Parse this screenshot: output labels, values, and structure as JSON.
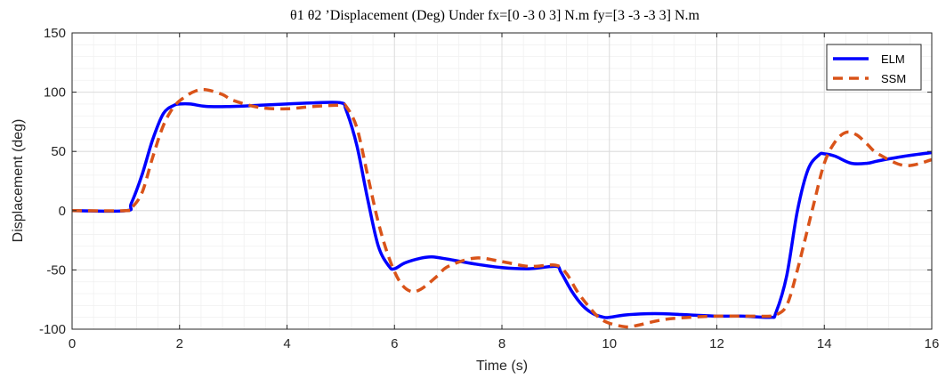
{
  "chart_data": {
    "type": "line",
    "title": "θ1 θ2 ’Displacement (Deg) Under fx=[0 -3 0 3] N.m fy=[3 -3 -3 3] N.m",
    "xlabel": "Time (s)",
    "ylabel": "Displacement (deg)",
    "xlim": [
      0,
      16
    ],
    "ylim": [
      -100,
      150
    ],
    "xticks": [
      "0",
      "2",
      "4",
      "6",
      "8",
      "10",
      "12",
      "14",
      "16"
    ],
    "yticks": [
      "-100",
      "-50",
      "0",
      "50",
      "100",
      "150"
    ],
    "grid": true,
    "legend_position": "top-right",
    "series": [
      {
        "name": "ELM",
        "color": "#0000ff",
        "style": "solid",
        "x": [
          0,
          1,
          1.1,
          1.3,
          1.5,
          1.7,
          1.9,
          2.0,
          2.2,
          2.5,
          3.0,
          3.5,
          4.0,
          4.5,
          5.0,
          5.1,
          5.3,
          5.5,
          5.7,
          5.9,
          6.0,
          6.2,
          6.5,
          6.7,
          7.0,
          7.5,
          8.0,
          8.5,
          9.0,
          9.1,
          9.3,
          9.5,
          9.7,
          9.9,
          10.0,
          10.3,
          10.7,
          11.0,
          11.5,
          12.0,
          12.5,
          13.0,
          13.1,
          13.3,
          13.5,
          13.7,
          13.9,
          14.0,
          14.2,
          14.5,
          14.8,
          15.0,
          15.5,
          16.0
        ],
        "y": [
          0,
          0,
          6,
          30,
          60,
          82,
          89,
          90,
          90,
          88,
          88,
          89,
          90,
          91,
          91,
          85,
          55,
          10,
          -30,
          -47,
          -49,
          -44,
          -40,
          -39,
          -41,
          -45,
          -48,
          -49,
          -47,
          -52,
          -68,
          -80,
          -87,
          -90,
          -90,
          -88,
          -87,
          -87,
          -88,
          -89,
          -89,
          -90,
          -86,
          -55,
          0,
          35,
          47,
          48,
          46,
          40,
          40,
          42,
          46,
          49
        ]
      },
      {
        "name": "SSM",
        "color": "#d95319",
        "style": "dashed",
        "x": [
          0,
          1,
          1.1,
          1.3,
          1.5,
          1.7,
          1.9,
          2.1,
          2.3,
          2.5,
          2.8,
          3.0,
          3.5,
          4.0,
          4.5,
          5.0,
          5.1,
          5.3,
          5.5,
          5.7,
          5.9,
          6.1,
          6.3,
          6.5,
          6.8,
          7.0,
          7.5,
          8.0,
          8.5,
          9.0,
          9.2,
          9.4,
          9.6,
          9.8,
          10.0,
          10.3,
          10.5,
          11.0,
          11.5,
          12.0,
          12.5,
          13.0,
          13.1,
          13.3,
          13.5,
          13.8,
          14.0,
          14.2,
          14.4,
          14.6,
          14.8,
          15.0,
          15.5,
          16.0
        ],
        "y": [
          0,
          0,
          2,
          15,
          45,
          72,
          88,
          96,
          101,
          102,
          98,
          93,
          87,
          86,
          88,
          89,
          88,
          70,
          30,
          -10,
          -40,
          -60,
          -68,
          -66,
          -55,
          -47,
          -40,
          -43,
          -47,
          -46,
          -53,
          -68,
          -80,
          -90,
          -95,
          -98,
          -97,
          -92,
          -90,
          -89,
          -89,
          -89,
          -88,
          -80,
          -50,
          5,
          40,
          58,
          66,
          64,
          56,
          48,
          38,
          43
        ]
      }
    ]
  }
}
